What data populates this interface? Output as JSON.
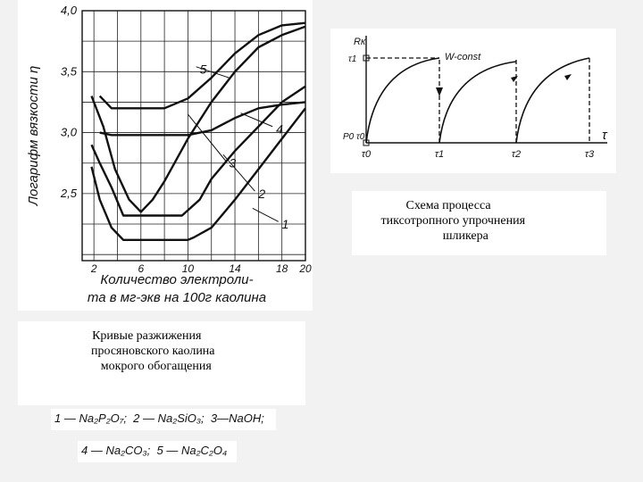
{
  "chart_data": [
    {
      "type": "line",
      "ylabel": "Логарифм вязкости η",
      "xlabel_line1": "Количество электроли-",
      "xlabel_line2": "та в мг-экв на 100г каолина",
      "xlim": [
        1,
        20
      ],
      "ylim": [
        1.95,
        4.0
      ],
      "xticks": [
        "2",
        "6",
        "10",
        "14",
        "18",
        "20"
      ],
      "xtick_values": [
        2,
        6,
        10,
        14,
        18,
        20
      ],
      "yticks": [
        "2,5",
        "3,0",
        "3,5",
        "4,0"
      ],
      "ytick_values": [
        2.5,
        3.0,
        3.5,
        4.0
      ],
      "grid": true,
      "series": [
        {
          "name": "1",
          "x": [
            1.8,
            2.5,
            3.5,
            4.5,
            6,
            8,
            10,
            10.5,
            12,
            14,
            16,
            18,
            20
          ],
          "y": [
            2.72,
            2.45,
            2.22,
            2.12,
            2.12,
            2.12,
            2.12,
            2.14,
            2.22,
            2.45,
            2.7,
            2.95,
            3.2
          ]
        },
        {
          "name": "2",
          "x": [
            1.8,
            2.5,
            3.5,
            4.5,
            6,
            8,
            9.5,
            11,
            12,
            14,
            16,
            18,
            20
          ],
          "y": [
            2.9,
            2.75,
            2.55,
            2.32,
            2.32,
            2.32,
            2.32,
            2.45,
            2.62,
            2.85,
            3.05,
            3.25,
            3.38
          ]
        },
        {
          "name": "3",
          "x": [
            1.8,
            2.8,
            3.8,
            5,
            6,
            7,
            8,
            10,
            12,
            14,
            16,
            18,
            20
          ],
          "y": [
            3.3,
            3.05,
            2.7,
            2.45,
            2.35,
            2.45,
            2.6,
            2.95,
            3.25,
            3.5,
            3.7,
            3.8,
            3.87
          ]
        },
        {
          "name": "4",
          "x": [
            2.5,
            3.5,
            4.5,
            6,
            8,
            10,
            12,
            14,
            16,
            18,
            20
          ],
          "y": [
            3.0,
            2.98,
            2.98,
            2.98,
            2.98,
            2.98,
            3.02,
            3.12,
            3.2,
            3.23,
            3.25
          ]
        },
        {
          "name": "5",
          "x": [
            2.5,
            3.5,
            4.5,
            6,
            8,
            10,
            12,
            14,
            16,
            18,
            20
          ],
          "y": [
            3.3,
            3.2,
            3.2,
            3.2,
            3.2,
            3.28,
            3.45,
            3.65,
            3.8,
            3.88,
            3.9
          ]
        }
      ],
      "series_labels": [
        "1",
        "2",
        "3",
        "4",
        "5"
      ]
    },
    {
      "type": "line",
      "ylabel_top": "Rк",
      "ylabel_sub1": "τ1",
      "ylabel_sub2": "P0 τ0",
      "annotation": "W-const",
      "xlabel": "τ",
      "xticks": [
        "τ0",
        "τ1",
        "τ2",
        "τ3"
      ]
    }
  ],
  "captions": {
    "left": "Кривые разжижения\n    просяновского каолина\n      мокрого обогащения",
    "right": "Схема процесса\n   тиксотропного упрочнения\n           шликера"
  },
  "legend": {
    "line1": "1 — Na₂P₂O₇;  2 — Na₂SiO₃;  3—NaOH;",
    "line2": "4 — Na₂CO₃;  5 — Na₂C₂O₄"
  }
}
